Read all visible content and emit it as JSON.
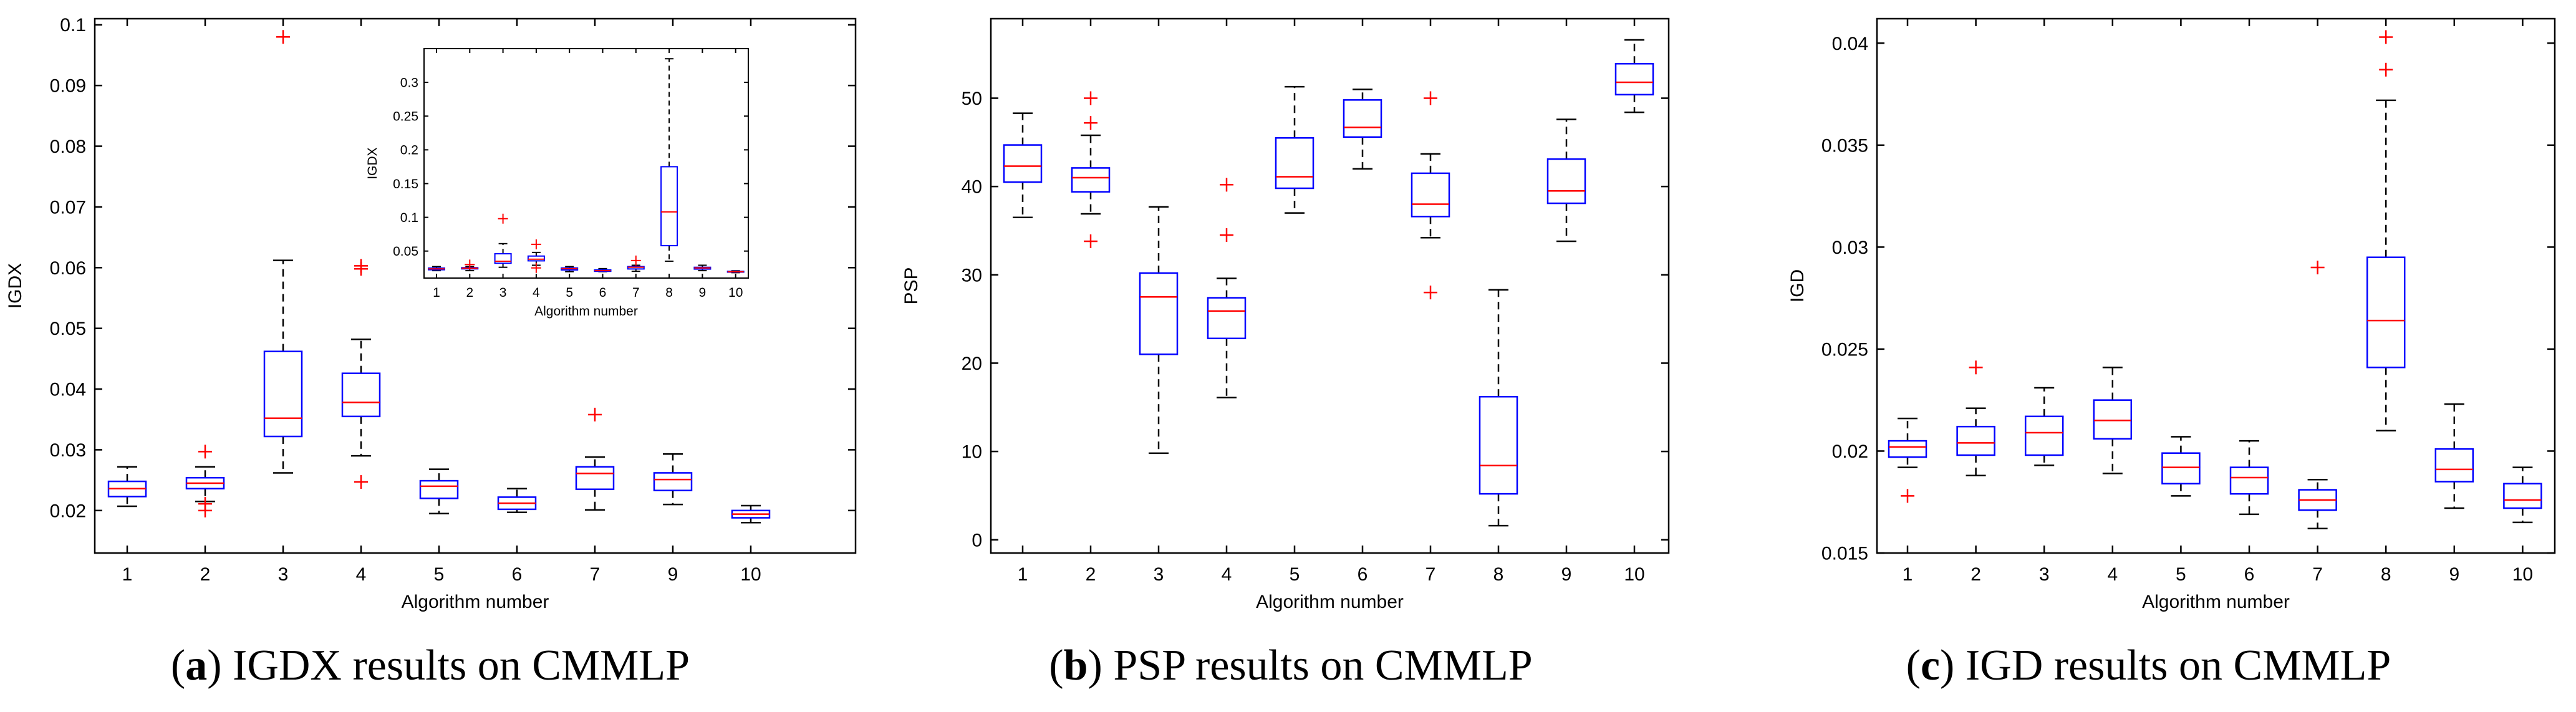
{
  "captions": [
    {
      "letter": "a",
      "text": " IGDX results on CMMLP"
    },
    {
      "letter": "b",
      "text": " PSP results on CMMLP"
    },
    {
      "letter": "c",
      "text": " IGD results on CMMLP"
    }
  ],
  "colors": {
    "box": "#0000ff",
    "median": "#ff0000",
    "whisker": "#000000",
    "outlier": "#ff0000",
    "axes": "#000000"
  },
  "chart_data": [
    {
      "id": "igdx",
      "type": "boxplot",
      "ylabel": "IGDX",
      "xlabel": "Algorithm number",
      "ylim": [
        0.013,
        0.101
      ],
      "yticks": [
        0.02,
        0.03,
        0.04,
        0.05,
        0.06,
        0.07,
        0.08,
        0.09,
        0.1
      ],
      "ytick_labels": [
        "0.02",
        "0.03",
        "0.04",
        "0.05",
        "0.06",
        "0.07",
        "0.08",
        "0.09",
        "0.1"
      ],
      "categories": [
        "1",
        "2",
        "3",
        "4",
        "5",
        "6",
        "7",
        "9",
        "10"
      ],
      "boxes": [
        {
          "whislo": 0.0207,
          "q1": 0.0223,
          "med": 0.0236,
          "q3": 0.0248,
          "whishi": 0.0272,
          "fliers": []
        },
        {
          "whislo": 0.0215,
          "q1": 0.0236,
          "med": 0.0245,
          "q3": 0.0254,
          "whishi": 0.0272,
          "fliers": [
            0.0297,
            0.0211,
            0.02
          ]
        },
        {
          "whislo": 0.0262,
          "q1": 0.0322,
          "med": 0.0352,
          "q3": 0.0462,
          "whishi": 0.0612,
          "fliers": [
            0.098
          ]
        },
        {
          "whislo": 0.029,
          "q1": 0.0355,
          "med": 0.0378,
          "q3": 0.0426,
          "whishi": 0.0482,
          "fliers": [
            0.0603,
            0.0598,
            0.0247
          ]
        },
        {
          "whislo": 0.0195,
          "q1": 0.022,
          "med": 0.024,
          "q3": 0.0249,
          "whishi": 0.0268,
          "fliers": []
        },
        {
          "whislo": 0.0197,
          "q1": 0.0202,
          "med": 0.0212,
          "q3": 0.0222,
          "whishi": 0.0236,
          "fliers": []
        },
        {
          "whislo": 0.0201,
          "q1": 0.0235,
          "med": 0.0261,
          "q3": 0.0272,
          "whishi": 0.0288,
          "fliers": [
            0.0358
          ]
        },
        {
          "whislo": 0.021,
          "q1": 0.0233,
          "med": 0.0251,
          "q3": 0.0262,
          "whishi": 0.0293,
          "fliers": []
        },
        {
          "whislo": 0.018,
          "q1": 0.0188,
          "med": 0.0194,
          "q3": 0.02,
          "whishi": 0.0208,
          "fliers": []
        }
      ],
      "inset": {
        "ylabel": "IGDX",
        "xlabel": "Algorithm number",
        "ylim": [
          0.01,
          0.35
        ],
        "yticks": [
          0.05,
          0.1,
          0.15,
          0.2,
          0.25,
          0.3
        ],
        "ytick_labels": [
          "0.05",
          "0.1",
          "0.15",
          "0.2",
          "0.25",
          "0.3"
        ],
        "categories": [
          "1",
          "2",
          "3",
          "4",
          "5",
          "6",
          "7",
          "8",
          "9",
          "10"
        ],
        "boxes": [
          {
            "whislo": 0.021,
            "q1": 0.0223,
            "med": 0.0236,
            "q3": 0.0248,
            "whishi": 0.027,
            "fliers": []
          },
          {
            "whislo": 0.021,
            "q1": 0.0236,
            "med": 0.0245,
            "q3": 0.0254,
            "whishi": 0.027,
            "fliers": [
              0.03
            ]
          },
          {
            "whislo": 0.026,
            "q1": 0.032,
            "med": 0.035,
            "q3": 0.046,
            "whishi": 0.061,
            "fliers": [
              0.098
            ]
          },
          {
            "whislo": 0.029,
            "q1": 0.0355,
            "med": 0.038,
            "q3": 0.0426,
            "whishi": 0.048,
            "fliers": [
              0.06,
              0.025
            ]
          },
          {
            "whislo": 0.0195,
            "q1": 0.022,
            "med": 0.024,
            "q3": 0.025,
            "whishi": 0.027,
            "fliers": []
          },
          {
            "whislo": 0.0195,
            "q1": 0.02,
            "med": 0.021,
            "q3": 0.022,
            "whishi": 0.024,
            "fliers": []
          },
          {
            "whislo": 0.02,
            "q1": 0.0235,
            "med": 0.026,
            "q3": 0.027,
            "whishi": 0.029,
            "fliers": [
              0.036
            ]
          },
          {
            "whislo": 0.035,
            "q1": 0.058,
            "med": 0.108,
            "q3": 0.175,
            "whishi": 0.335,
            "fliers": []
          },
          {
            "whislo": 0.021,
            "q1": 0.0233,
            "med": 0.025,
            "q3": 0.026,
            "whishi": 0.029,
            "fliers": []
          },
          {
            "whislo": 0.018,
            "q1": 0.0188,
            "med": 0.0194,
            "q3": 0.02,
            "whishi": 0.0208,
            "fliers": []
          }
        ]
      }
    },
    {
      "id": "psp",
      "type": "boxplot",
      "ylabel": "PSP",
      "xlabel": "Algorithm number",
      "ylim": [
        -1.5,
        59
      ],
      "yticks": [
        0,
        10,
        20,
        30,
        40,
        50
      ],
      "ytick_labels": [
        "0",
        "10",
        "20",
        "30",
        "40",
        "50"
      ],
      "categories": [
        "1",
        "2",
        "3",
        "4",
        "5",
        "6",
        "7",
        "8",
        "9",
        "10"
      ],
      "boxes": [
        {
          "whislo": 36.5,
          "q1": 40.5,
          "med": 42.3,
          "q3": 44.7,
          "whishi": 48.3,
          "fliers": []
        },
        {
          "whislo": 36.9,
          "q1": 39.4,
          "med": 41.0,
          "q3": 42.1,
          "whishi": 45.8,
          "fliers": [
            50.0,
            47.2,
            33.8
          ]
        },
        {
          "whislo": 9.8,
          "q1": 21.0,
          "med": 27.5,
          "q3": 30.2,
          "whishi": 37.7,
          "fliers": []
        },
        {
          "whislo": 16.1,
          "q1": 22.8,
          "med": 25.9,
          "q3": 27.4,
          "whishi": 29.6,
          "fliers": [
            40.2,
            34.5
          ]
        },
        {
          "whislo": 37.0,
          "q1": 39.8,
          "med": 41.1,
          "q3": 45.5,
          "whishi": 51.3,
          "fliers": []
        },
        {
          "whislo": 42.0,
          "q1": 45.6,
          "med": 46.7,
          "q3": 49.8,
          "whishi": 51.0,
          "fliers": []
        },
        {
          "whislo": 34.2,
          "q1": 36.6,
          "med": 38.0,
          "q3": 41.5,
          "whishi": 43.7,
          "fliers": [
            50.0,
            28.0
          ]
        },
        {
          "whislo": 1.6,
          "q1": 5.2,
          "med": 8.4,
          "q3": 16.2,
          "whishi": 28.3,
          "fliers": []
        },
        {
          "whislo": 33.8,
          "q1": 38.1,
          "med": 39.5,
          "q3": 43.1,
          "whishi": 47.6,
          "fliers": []
        },
        {
          "whislo": 48.4,
          "q1": 50.4,
          "med": 51.8,
          "q3": 53.9,
          "whishi": 56.6,
          "fliers": []
        }
      ]
    },
    {
      "id": "igd",
      "type": "boxplot",
      "ylabel": "IGD",
      "xlabel": "Algorithm number",
      "ylim": [
        0.015,
        0.0412
      ],
      "yticks": [
        0.015,
        0.02,
        0.025,
        0.03,
        0.035,
        0.04
      ],
      "ytick_labels": [
        "0.015",
        "0.02",
        "0.025",
        "0.03",
        "0.035",
        "0.04"
      ],
      "categories": [
        "1",
        "2",
        "3",
        "4",
        "5",
        "6",
        "7",
        "8",
        "9",
        "10"
      ],
      "boxes": [
        {
          "whislo": 0.0192,
          "q1": 0.0197,
          "med": 0.0202,
          "q3": 0.0205,
          "whishi": 0.0216,
          "fliers": [
            0.0178
          ]
        },
        {
          "whislo": 0.0188,
          "q1": 0.0198,
          "med": 0.0204,
          "q3": 0.0212,
          "whishi": 0.0221,
          "fliers": [
            0.0241
          ]
        },
        {
          "whislo": 0.0193,
          "q1": 0.0198,
          "med": 0.0209,
          "q3": 0.0217,
          "whishi": 0.0231,
          "fliers": []
        },
        {
          "whislo": 0.0189,
          "q1": 0.0206,
          "med": 0.0215,
          "q3": 0.0225,
          "whishi": 0.0241,
          "fliers": []
        },
        {
          "whislo": 0.0178,
          "q1": 0.0184,
          "med": 0.0192,
          "q3": 0.0199,
          "whishi": 0.0207,
          "fliers": []
        },
        {
          "whislo": 0.0169,
          "q1": 0.0179,
          "med": 0.0187,
          "q3": 0.0192,
          "whishi": 0.0205,
          "fliers": []
        },
        {
          "whislo": 0.0162,
          "q1": 0.0171,
          "med": 0.0176,
          "q3": 0.0181,
          "whishi": 0.0186,
          "fliers": [
            0.029
          ]
        },
        {
          "whislo": 0.021,
          "q1": 0.0241,
          "med": 0.0264,
          "q3": 0.0295,
          "whishi": 0.0372,
          "fliers": [
            0.0403,
            0.0387
          ]
        },
        {
          "whislo": 0.0172,
          "q1": 0.0185,
          "med": 0.0191,
          "q3": 0.0201,
          "whishi": 0.0223,
          "fliers": []
        },
        {
          "whislo": 0.0165,
          "q1": 0.0172,
          "med": 0.0176,
          "q3": 0.0184,
          "whishi": 0.0192,
          "fliers": []
        }
      ]
    }
  ]
}
